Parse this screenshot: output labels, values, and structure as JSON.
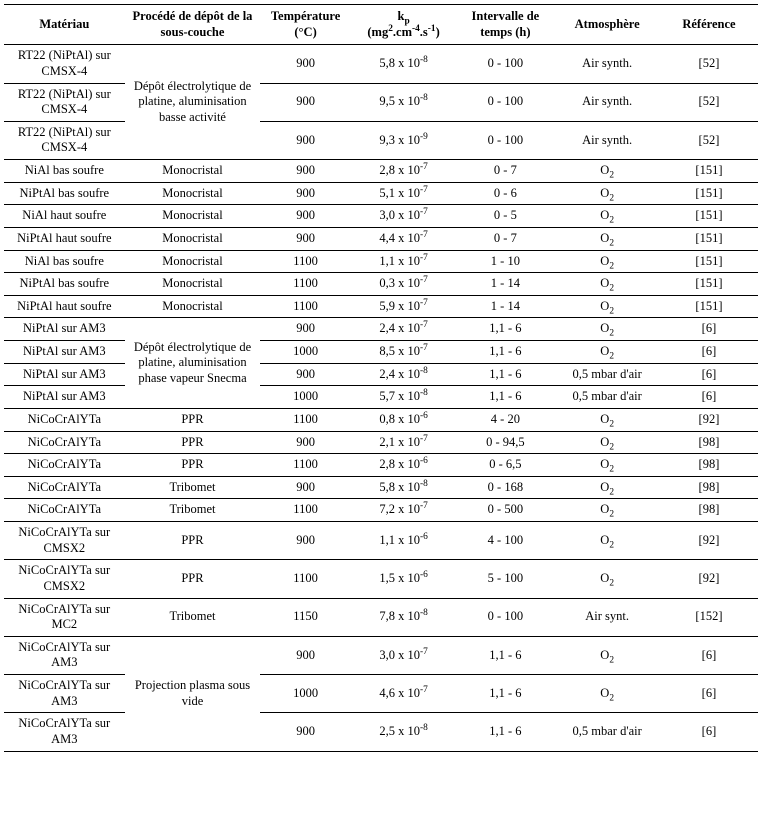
{
  "headers": {
    "materiau": "Matériau",
    "procede": "Procédé de dépôt de la sous-couche",
    "temperature": "Température (°C)",
    "kp_label": "k",
    "kp_sub": "p",
    "kp_units_pre": "(mg",
    "kp_units_sup1": "2",
    "kp_units_mid": ".cm",
    "kp_units_sup2": "-4",
    "kp_units_mid2": ".s",
    "kp_units_sup3": "-1",
    "kp_units_post": ")",
    "intervalle": "Intervalle de temps (h)",
    "atmosphere": "Atmosphère",
    "reference": "Référence"
  },
  "procede_group1": "Dépôt électrolytique de platine, aluminisation basse activité",
  "procede_group2": "Dépôt électrolytique de platine, aluminisation phase vapeur Snecma",
  "procede_group3": "Projection plasma sous vide",
  "rows": [
    {
      "materiau": "RT22 (NiPtAl) sur CMSX-4",
      "temperature": "900",
      "kp_base": "5,8 x 10",
      "kp_exp": "-8",
      "intervalle": "0 - 100",
      "atmosphere": "Air synth.",
      "reference": "[52]"
    },
    {
      "materiau": "RT22 (NiPtAl) sur CMSX-4",
      "temperature": "900",
      "kp_base": "9,5 x 10",
      "kp_exp": "-8",
      "intervalle": "0 - 100",
      "atmosphere": "Air synth.",
      "reference": "[52]"
    },
    {
      "materiau": "RT22 (NiPtAl) sur CMSX-4",
      "temperature": "900",
      "kp_base": "9,3 x 10",
      "kp_exp": "-9",
      "intervalle": "0 - 100",
      "atmosphere": "Air synth.",
      "reference": "[52]"
    },
    {
      "materiau": "NiAl bas soufre",
      "procede": "Monocristal",
      "temperature": "900",
      "kp_base": "2,8 x 10",
      "kp_exp": "-7",
      "intervalle": "0 - 7",
      "atm_pre": "O",
      "atm_sub": "2",
      "reference": "[151]"
    },
    {
      "materiau": "NiPtAl bas soufre",
      "procede": "Monocristal",
      "temperature": "900",
      "kp_base": "5,1 x 10",
      "kp_exp": "-7",
      "intervalle": "0 - 6",
      "atm_pre": "O",
      "atm_sub": "2",
      "reference": "[151]"
    },
    {
      "materiau": "NiAl haut soufre",
      "procede": "Monocristal",
      "temperature": "900",
      "kp_base": "3,0 x 10",
      "kp_exp": "-7",
      "intervalle": "0 - 5",
      "atm_pre": "O",
      "atm_sub": "2",
      "reference": "[151]"
    },
    {
      "materiau": "NiPtAl haut soufre",
      "procede": "Monocristal",
      "temperature": "900",
      "kp_base": "4,4 x 10",
      "kp_exp": "-7",
      "intervalle": "0 - 7",
      "atm_pre": "O",
      "atm_sub": "2",
      "reference": "[151]"
    },
    {
      "materiau": "NiAl bas soufre",
      "procede": "Monocristal",
      "temperature": "1100",
      "kp_base": "1,1 x 10",
      "kp_exp": "-7",
      "intervalle": "1 - 10",
      "atm_pre": "O",
      "atm_sub": "2",
      "reference": "[151]"
    },
    {
      "materiau": "NiPtAl bas soufre",
      "procede": "Monocristal",
      "temperature": "1100",
      "kp_base": "0,3 x 10",
      "kp_exp": "-7",
      "intervalle": "1 - 14",
      "atm_pre": "O",
      "atm_sub": "2",
      "reference": "[151]"
    },
    {
      "materiau": "NiPtAl haut soufre",
      "procede": "Monocristal",
      "temperature": "1100",
      "kp_base": "5,9 x 10",
      "kp_exp": "-7",
      "intervalle": "1 - 14",
      "atm_pre": "O",
      "atm_sub": "2",
      "reference": "[151]"
    },
    {
      "materiau": "NiPtAl sur AM3",
      "temperature": "900",
      "kp_base": "2,4 x 10",
      "kp_exp": "-7",
      "intervalle": "1,1 - 6",
      "atm_pre": "O",
      "atm_sub": "2",
      "reference": "[6]"
    },
    {
      "materiau": "NiPtAl sur AM3",
      "temperature": "1000",
      "kp_base": "8,5 x 10",
      "kp_exp": "-7",
      "intervalle": "1,1 - 6",
      "atm_pre": "O",
      "atm_sub": "2",
      "reference": "[6]"
    },
    {
      "materiau": "NiPtAl sur AM3",
      "temperature": "900",
      "kp_base": "2,4 x 10",
      "kp_exp": "-8",
      "intervalle": "1,1 - 6",
      "atmosphere": "0,5 mbar d'air",
      "reference": "[6]"
    },
    {
      "materiau": "NiPtAl sur AM3",
      "temperature": "1000",
      "kp_base": "5,7 x 10",
      "kp_exp": "-8",
      "intervalle": "1,1 - 6",
      "atmosphere": "0,5 mbar d'air",
      "reference": "[6]"
    },
    {
      "materiau": "NiCoCrAlYTa",
      "procede": "PPR",
      "temperature": "1100",
      "kp_base": "0,8 x 10",
      "kp_exp": "-6",
      "intervalle": "4 - 20",
      "atm_pre": "O",
      "atm_sub": "2",
      "reference": "[92]"
    },
    {
      "materiau": "NiCoCrAlYTa",
      "procede": "PPR",
      "temperature": "900",
      "kp_base": "2,1 x 10",
      "kp_exp": "-7",
      "intervalle": "0 - 94,5",
      "atm_pre": "O",
      "atm_sub": "2",
      "reference": "[98]"
    },
    {
      "materiau": "NiCoCrAlYTa",
      "procede": "PPR",
      "temperature": "1100",
      "kp_base": "2,8 x 10",
      "kp_exp": "-6",
      "intervalle": "0 - 6,5",
      "atm_pre": "O",
      "atm_sub": "2",
      "reference": "[98]"
    },
    {
      "materiau": "NiCoCrAlYTa",
      "procede": "Tribomet",
      "temperature": "900",
      "kp_base": "5,8 x 10",
      "kp_exp": "-8",
      "intervalle": "0 - 168",
      "atm_pre": "O",
      "atm_sub": "2",
      "reference": "[98]"
    },
    {
      "materiau": "NiCoCrAlYTa",
      "procede": "Tribomet",
      "temperature": "1100",
      "kp_base": "7,2 x 10",
      "kp_exp": "-7",
      "intervalle": "0 - 500",
      "atm_pre": "O",
      "atm_sub": "2",
      "reference": "[98]"
    },
    {
      "materiau": "NiCoCrAlYTa sur CMSX2",
      "procede": "PPR",
      "temperature": "900",
      "kp_base": "1,1 x 10",
      "kp_exp": "-6",
      "intervalle": "4 - 100",
      "atm_pre": "O",
      "atm_sub": "2",
      "reference": "[92]"
    },
    {
      "materiau": "NiCoCrAlYTa sur CMSX2",
      "procede": "PPR",
      "temperature": "1100",
      "kp_base": "1,5 x 10",
      "kp_exp": "-6",
      "intervalle": "5 - 100",
      "atm_pre": "O",
      "atm_sub": "2",
      "reference": "[92]"
    },
    {
      "materiau": "NiCoCrAlYTa sur MC2",
      "procede": "Tribomet",
      "temperature": "1150",
      "kp_base": "7,8 x 10",
      "kp_exp": "-8",
      "intervalle": "0 - 100",
      "atmosphere": "Air synt.",
      "reference": "[152]"
    },
    {
      "materiau": "NiCoCrAlYTa sur AM3",
      "temperature": "900",
      "kp_base": "3,0 x 10",
      "kp_exp": "-7",
      "intervalle": "1,1 - 6",
      "atm_pre": "O",
      "atm_sub": "2",
      "reference": "[6]"
    },
    {
      "materiau": "NiCoCrAlYTa sur AM3",
      "temperature": "1000",
      "kp_base": "4,6 x 10",
      "kp_exp": "-7",
      "intervalle": "1,1 - 6",
      "atm_pre": "O",
      "atm_sub": "2",
      "reference": "[6]"
    },
    {
      "materiau": "NiCoCrAlYTa sur AM3",
      "temperature": "900",
      "kp_base": "2,5 x 10",
      "kp_exp": "-8",
      "intervalle": "1,1 - 6",
      "atmosphere": "0,5 mbar d'air",
      "reference": "[6]"
    }
  ]
}
